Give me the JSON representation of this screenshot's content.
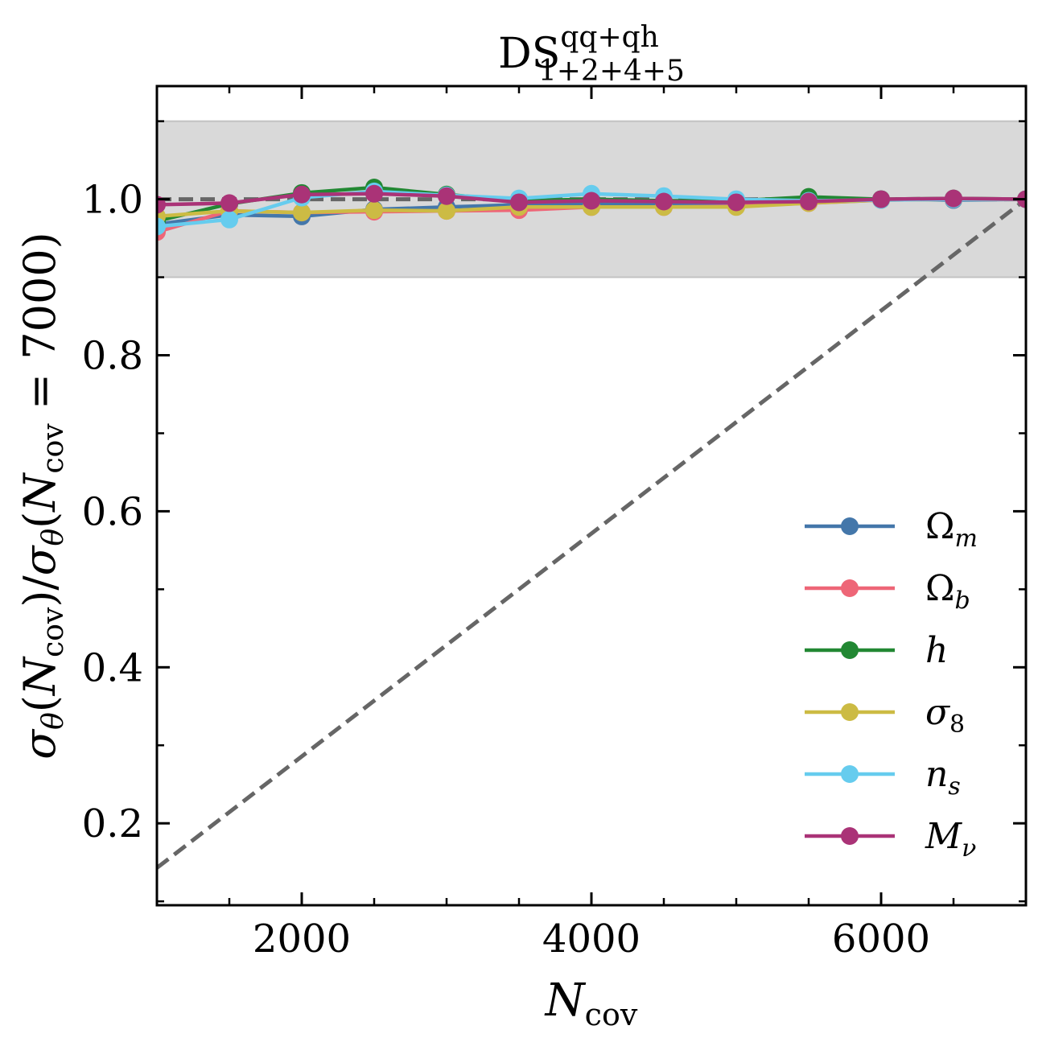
{
  "chart_data": {
    "type": "line",
    "title": {
      "base": "DS",
      "sup": "qq+qh",
      "sub": "1+2+4+5"
    },
    "xlabel": {
      "base": "N",
      "sub": "cov"
    },
    "ylabel": {
      "sigma": "σ",
      "theta": "θ",
      "n": "N",
      "cov": "cov",
      "tail": " = 7000)"
    },
    "xlim": [
      1000,
      7000
    ],
    "ylim": [
      0.095,
      1.145
    ],
    "xticks": [
      2000,
      4000,
      6000
    ],
    "xtick_labels": [
      "2000",
      "4000",
      "6000"
    ],
    "xminor": [
      1500,
      2500,
      3000,
      3500,
      4500,
      5000,
      5500,
      6500
    ],
    "yticks": [
      0.2,
      0.4,
      0.6,
      0.8,
      1.0
    ],
    "ytick_labels": [
      "0.2",
      "0.4",
      "0.6",
      "0.8",
      "1.0"
    ],
    "yminor": [
      0.1,
      0.3,
      0.5,
      0.7,
      0.9,
      1.1
    ],
    "band": {
      "ymin": 0.9,
      "ymax": 1.1,
      "color": "#d9d9d9",
      "edge": "#c2c2c2"
    },
    "ref_lines": [
      {
        "kind": "horizontal",
        "y": 1.0,
        "color": "#666666"
      },
      {
        "kind": "diagonal",
        "points": [
          [
            1000,
            0.1429
          ],
          [
            7000,
            1.0
          ]
        ],
        "color": "#666666"
      }
    ],
    "grid": false,
    "legend_position": "lower-right",
    "x": [
      1000,
      1500,
      2000,
      2500,
      3000,
      3500,
      4000,
      4500,
      5000,
      5500,
      6000,
      6500,
      7000
    ],
    "series": [
      {
        "name": "Ω",
        "sub": "m",
        "color": "#4477aa",
        "values": [
          0.968,
          0.98,
          0.978,
          0.987,
          0.99,
          0.993,
          0.994,
          0.994,
          0.994,
          0.997,
          1.0,
          0.999,
          1.0
        ]
      },
      {
        "name": "Ω",
        "sub": "b",
        "color": "#ee6677",
        "values": [
          0.958,
          0.985,
          0.983,
          0.984,
          0.985,
          0.986,
          0.99,
          0.99,
          0.991,
          0.995,
          0.999,
          1.0,
          1.0
        ]
      },
      {
        "name": "h",
        "sub": "",
        "color": "#228833",
        "values": [
          0.972,
          0.994,
          1.008,
          1.015,
          1.006,
          0.998,
          1.0,
          0.998,
          0.998,
          1.003,
          1.0,
          1.001,
          1.0
        ]
      },
      {
        "name": "σ",
        "sub": "8",
        "color": "#ccbb44",
        "values": [
          0.978,
          0.985,
          0.983,
          0.986,
          0.985,
          0.99,
          0.99,
          0.99,
          0.99,
          0.995,
          0.999,
          1.0,
          1.0
        ]
      },
      {
        "name": "n",
        "sub": "s",
        "color": "#66ccee",
        "values": [
          0.965,
          0.974,
          1.002,
          1.01,
          1.005,
          1.001,
          1.007,
          1.004,
          1.0,
          0.998,
          0.999,
          1.0,
          1.0
        ]
      },
      {
        "name": "M",
        "sub": "ν",
        "color": "#aa3377",
        "values": [
          0.993,
          0.995,
          1.006,
          1.007,
          1.004,
          0.996,
          0.998,
          0.997,
          0.996,
          0.997,
          1.0,
          1.001,
          1.0
        ]
      }
    ]
  }
}
